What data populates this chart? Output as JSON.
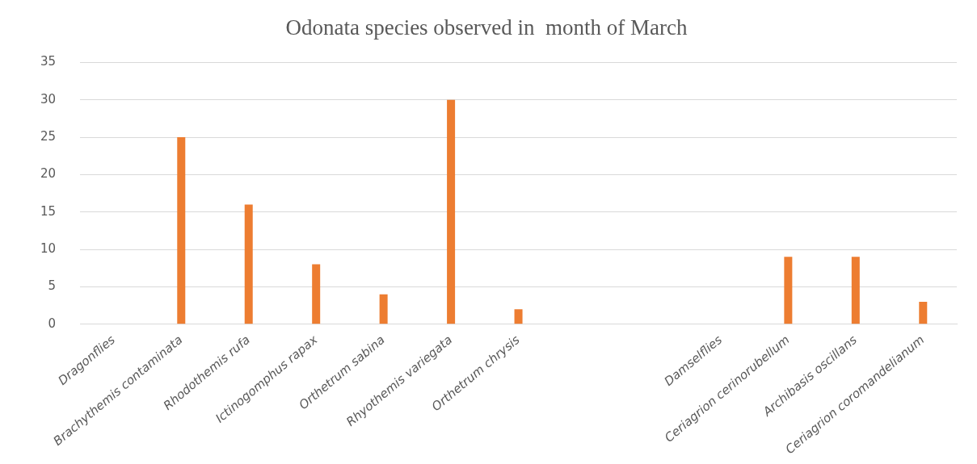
{
  "chart_data": {
    "type": "bar",
    "title": "Odonata species observed in  month of March",
    "categories": [
      "Dragonflies",
      "Brachythemis contaminata",
      "Rhodothemis rufa",
      "Ictinogomphus rapax",
      "Orthetrum sabina",
      "Rhyothemis variegata",
      "Orthetrum chrysis",
      null,
      null,
      "Damselflies",
      "Ceriagrion cerinorubellum",
      "Archibasis oscillans",
      "Ceriagrion coromandelianum"
    ],
    "values": [
      null,
      25,
      16,
      8,
      4,
      30,
      2,
      null,
      null,
      null,
      9,
      9,
      3
    ],
    "color": "#ed7d31",
    "ylim": [
      0,
      35
    ],
    "yticks": [
      0,
      5,
      10,
      15,
      20,
      25,
      30,
      35
    ],
    "grid": "y",
    "legend": false
  }
}
